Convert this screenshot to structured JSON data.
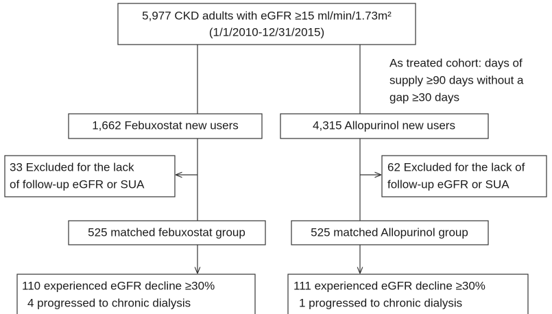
{
  "nodes": [
    {
      "lines": [
        "5,977 CKD adults with eGFR ≥15 ml/min/1.73m²",
        "(1/1/2010-12/31/2015)"
      ]
    },
    {
      "lines": [
        "1,662 Febuxostat new users"
      ]
    },
    {
      "lines": [
        "4,315 Allopurinol new users"
      ]
    },
    {
      "lines": [
        "33 Excluded for the lack",
        "of follow-up eGFR or SUA"
      ]
    },
    {
      "lines": [
        "62 Excluded for the lack of",
        "follow-up eGFR or SUA"
      ]
    },
    {
      "lines": [
        "525 matched febuxostat group"
      ]
    },
    {
      "lines": [
        "525 matched Allopurinol group"
      ]
    },
    {
      "lines": [
        "110 experienced eGFR decline ≥30%",
        "4 progressed to chronic dialysis"
      ]
    },
    {
      "lines": [
        "111 experienced eGFR decline ≥30%",
        "1 progressed to chronic dialysis"
      ]
    }
  ],
  "annotation": {
    "lines": [
      "As treated cohort: days of",
      "supply ≥90 days without a",
      "gap ≥30 days"
    ]
  }
}
